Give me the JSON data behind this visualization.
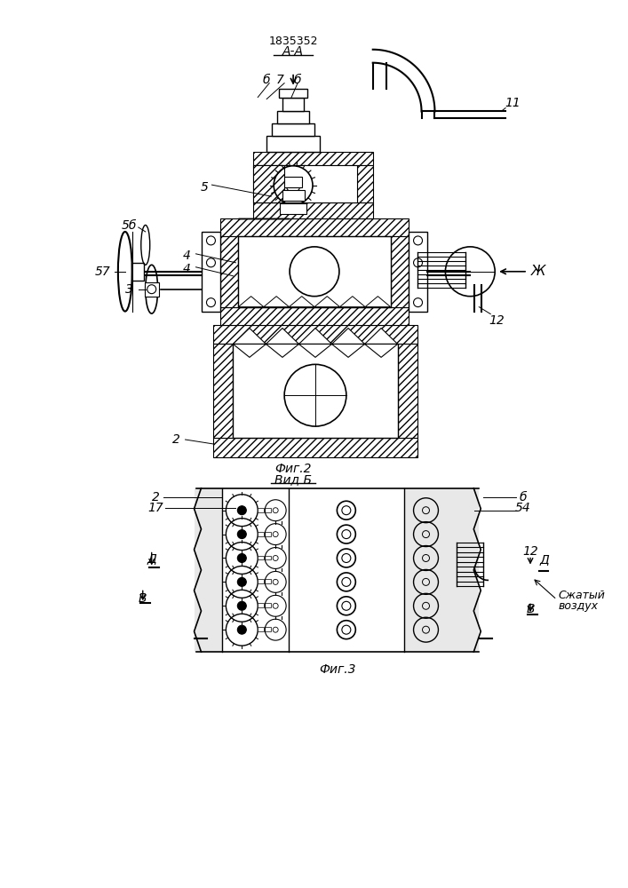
{
  "bg_color": "#ffffff",
  "patent_number": "1835352",
  "fig2_caption": "Фиг.2",
  "fig2_sub": "Вид Б",
  "fig3_caption": "Фиг.3",
  "section_label": "А-А",
  "label_b_left": "б",
  "label_7": "7",
  "label_57": "57",
  "label_5": "5",
  "label_11": "11",
  "label_12": "12",
  "label_zh": "Ж",
  "label_4a": "4",
  "label_4b": "4",
  "label_5b": "5б",
  "label_3": "3",
  "label_2": "2",
  "label_17": "17",
  "label_d": "Д",
  "label_v": "В",
  "label_6": "б",
  "label_54": "54",
  "label_compressed": "Сжатый\nвоздух"
}
